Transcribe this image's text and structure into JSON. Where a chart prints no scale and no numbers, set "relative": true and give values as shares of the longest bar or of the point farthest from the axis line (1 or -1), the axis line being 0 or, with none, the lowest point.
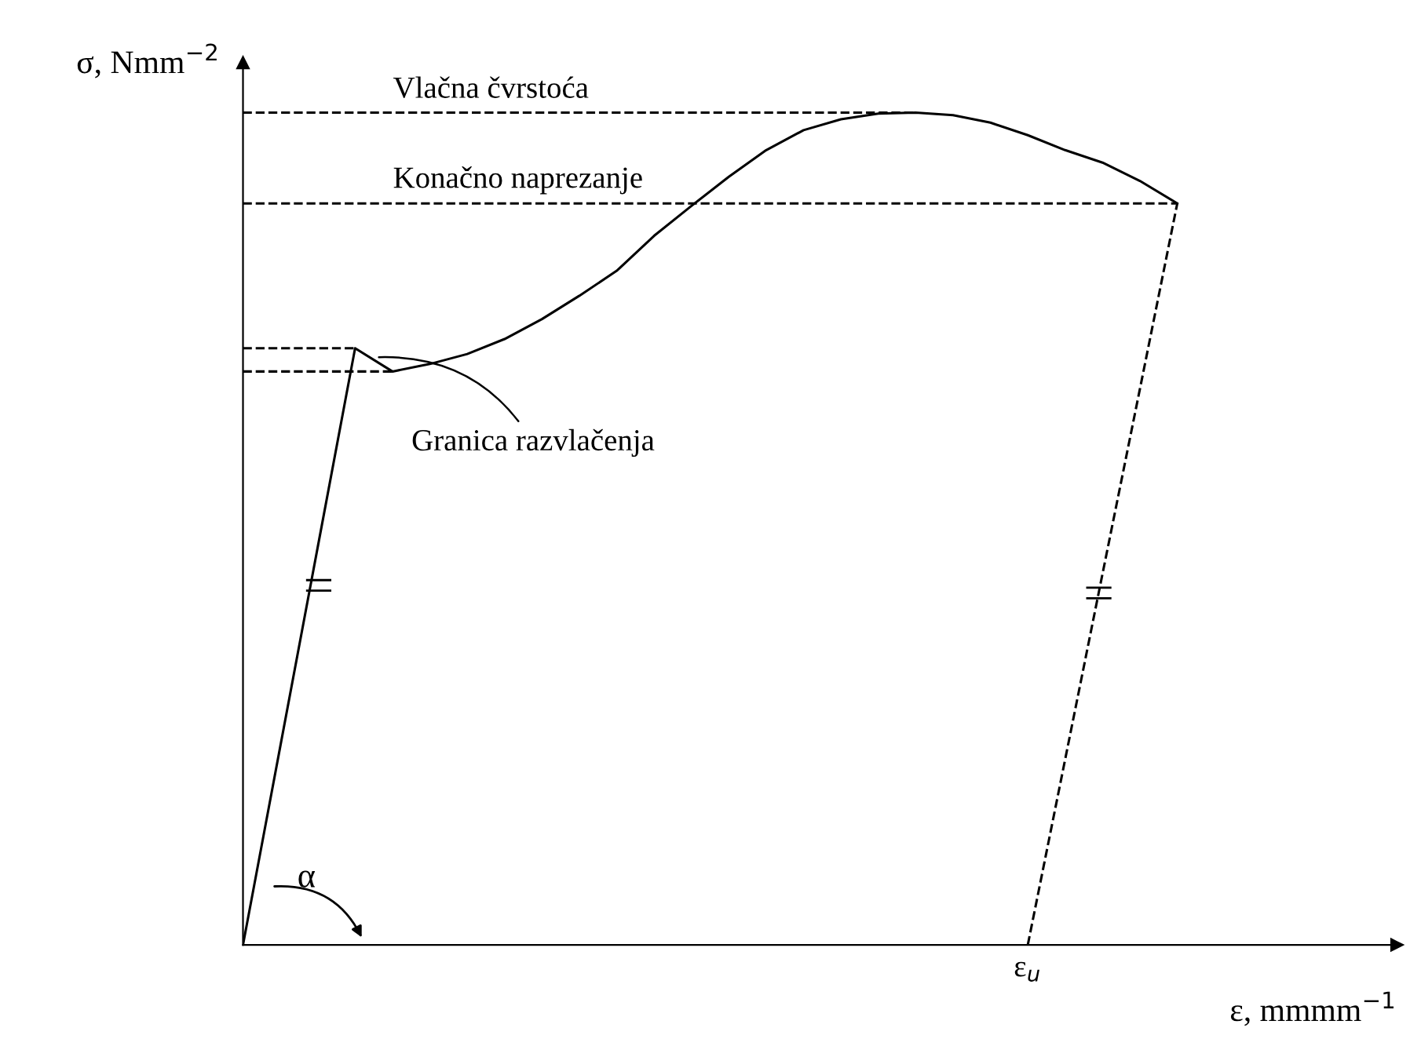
{
  "chart_data": {
    "type": "line",
    "relative": true,
    "xlabel": "ε, mmmm$^{−1}$",
    "ylabel": "σ, Nmm$^{−2}$",
    "categories": [
      null,
      null,
      null,
      null,
      null,
      null,
      null,
      null,
      null,
      null,
      null,
      null,
      null,
      null,
      null,
      null,
      null,
      null,
      null,
      null,
      null,
      null,
      null,
      null,
      null,
      null
    ],
    "series": [
      {
        "color": "#000000",
        "values": [
          0,
          0.239,
          0.478,
          0.717,
          0.689,
          0.698,
          0.71,
          0.728,
          0.752,
          0.78,
          0.81,
          0.852,
          0.888,
          0.923,
          0.955,
          0.979,
          0.992,
          0.999,
          1.0,
          0.997,
          0.988,
          0.973,
          0.955,
          0.94,
          0.918,
          0.891
        ]
      },
      {
        "color": "#000000",
        "line_style": "dashed",
        "values": [
          null,
          null,
          null,
          null,
          null,
          null,
          null,
          null,
          null,
          null,
          null,
          null,
          null,
          null,
          null,
          null,
          null,
          null,
          null,
          null,
          null,
          0,
          0.223,
          0.446,
          0.668,
          0.891
        ]
      },
      {
        "color": "#000000",
        "line_style": "dashed",
        "values": [
          1.0,
          1.0,
          1.0,
          1.0,
          1.0,
          1.0,
          1.0,
          1.0,
          1.0,
          1.0,
          1.0,
          1.0,
          1.0,
          1.0,
          1.0,
          1.0,
          1.0,
          1.0,
          1.0,
          null,
          null,
          null,
          null,
          null,
          null,
          null
        ]
      },
      {
        "color": "#000000",
        "line_style": "dashed",
        "values": [
          0.891,
          0.891,
          0.891,
          0.891,
          0.891,
          0.891,
          0.891,
          0.891,
          0.891,
          0.891,
          0.891,
          0.891,
          0.891,
          0.891,
          0.891,
          0.891,
          0.891,
          0.891,
          0.891,
          0.891,
          0.891,
          0.891,
          0.891,
          0.891,
          0.891,
          0.891
        ]
      },
      {
        "color": "#000000",
        "line_style": "dashed",
        "values": [
          0.717,
          0.717,
          0.717,
          0.717,
          null,
          null,
          null,
          null,
          null,
          null,
          null,
          null,
          null,
          null,
          null,
          null,
          null,
          null,
          null,
          null,
          null,
          null,
          null,
          null,
          null,
          null
        ]
      },
      {
        "color": "#000000",
        "line_style": "dashed",
        "values": [
          0.689,
          0.689,
          0.689,
          0.689,
          0.689,
          null,
          null,
          null,
          null,
          null,
          null,
          null,
          null,
          null,
          null,
          null,
          null,
          null,
          null,
          null,
          null,
          null,
          null,
          null,
          null,
          null
        ]
      }
    ],
    "annotations": [
      "Vlačna čvrstoća",
      "Konačno naprezanje",
      "Granica razvlačenja",
      "ε$_{u}$",
      "α"
    ]
  }
}
